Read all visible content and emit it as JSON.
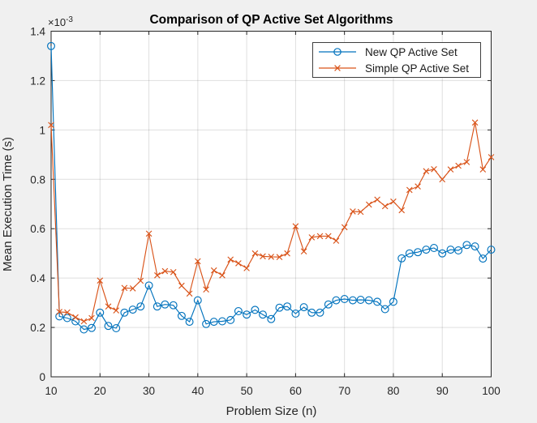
{
  "chart_data": {
    "type": "line",
    "title": "Comparison of QP Active Set Algorithms",
    "xlabel": "Problem Size (n)",
    "ylabel": "Mean Execution Time (s)",
    "y_multiplier": {
      "base": "×10",
      "exponent": "-3"
    },
    "y_units": "seconds × 10^-3",
    "xlim": [
      10,
      100
    ],
    "ylim": [
      0,
      1.4
    ],
    "grid": true,
    "legend_position": "top-right",
    "x_ticks": [
      10,
      20,
      30,
      40,
      50,
      60,
      70,
      80,
      90,
      100
    ],
    "x_tick_labels": [
      "10",
      "20",
      "30",
      "40",
      "50",
      "60",
      "70",
      "80",
      "90",
      "100"
    ],
    "y_ticks": [
      0,
      0.2,
      0.4,
      0.6,
      0.8,
      1,
      1.2,
      1.4
    ],
    "y_tick_labels": [
      "0",
      "0.2",
      "0.4",
      "0.6",
      "0.8",
      "1",
      "1.2",
      "1.4"
    ],
    "colors": {
      "figure_bg": "#f0f0f0",
      "plot_bg": "#ffffff",
      "axis": "#262626",
      "grid": "#262626"
    },
    "x": [
      10,
      11.7,
      13.3,
      15,
      16.7,
      18.3,
      20,
      21.7,
      23.3,
      25,
      26.7,
      28.3,
      30,
      31.7,
      33.3,
      35,
      36.7,
      38.3,
      40,
      41.7,
      43.3,
      45,
      46.7,
      48.3,
      50,
      51.7,
      53.3,
      55,
      56.7,
      58.3,
      60,
      61.7,
      63.3,
      65,
      66.7,
      68.3,
      70,
      71.7,
      73.3,
      75,
      76.7,
      78.3,
      80,
      81.7,
      83.3,
      85,
      86.7,
      88.3,
      90,
      91.7,
      93.3,
      95,
      96.7,
      98.3,
      100
    ],
    "series": [
      {
        "name": "New QP Active Set",
        "slug": "new-qp-active-set",
        "color": "#0072BD",
        "marker": "circle",
        "values": [
          1.34,
          0.245,
          0.238,
          0.225,
          0.192,
          0.198,
          0.26,
          0.206,
          0.197,
          0.26,
          0.272,
          0.285,
          0.37,
          0.285,
          0.293,
          0.29,
          0.247,
          0.223,
          0.31,
          0.214,
          0.223,
          0.225,
          0.23,
          0.266,
          0.252,
          0.271,
          0.252,
          0.234,
          0.28,
          0.285,
          0.256,
          0.282,
          0.26,
          0.26,
          0.293,
          0.31,
          0.315,
          0.31,
          0.312,
          0.31,
          0.304,
          0.274,
          0.304,
          0.48,
          0.5,
          0.505,
          0.515,
          0.522,
          0.5,
          0.515,
          0.512,
          0.534,
          0.528,
          0.479,
          0.515
        ]
      },
      {
        "name": "Simple QP Active Set",
        "slug": "simple-qp-active-set",
        "color": "#D95319",
        "marker": "x",
        "values": [
          1.02,
          0.263,
          0.261,
          0.241,
          0.225,
          0.238,
          0.39,
          0.285,
          0.269,
          0.36,
          0.358,
          0.389,
          0.58,
          0.411,
          0.428,
          0.424,
          0.369,
          0.337,
          0.468,
          0.354,
          0.431,
          0.411,
          0.475,
          0.46,
          0.44,
          0.5,
          0.488,
          0.486,
          0.485,
          0.5,
          0.61,
          0.508,
          0.565,
          0.57,
          0.57,
          0.551,
          0.606,
          0.67,
          0.668,
          0.698,
          0.718,
          0.691,
          0.71,
          0.675,
          0.757,
          0.771,
          0.833,
          0.841,
          0.8,
          0.84,
          0.855,
          0.87,
          1.03,
          0.84,
          0.89
        ]
      }
    ]
  }
}
